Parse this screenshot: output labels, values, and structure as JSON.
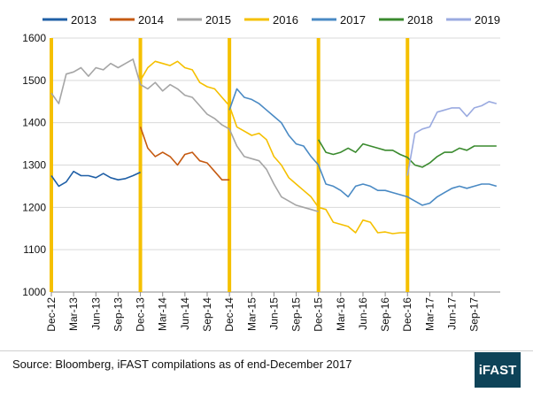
{
  "chart_data": {
    "type": "line",
    "title": "",
    "xlabel": "",
    "ylabel": "",
    "ylim": [
      1000,
      1600
    ],
    "yticks": [
      1000,
      1100,
      1200,
      1300,
      1400,
      1500,
      1600
    ],
    "x_ticks": [
      "Dec-12",
      "Mar-13",
      "Jun-13",
      "Sep-13",
      "Dec-13",
      "Mar-14",
      "Jun-14",
      "Sep-14",
      "Dec-14",
      "Mar-15",
      "Jun-15",
      "Sep-15",
      "Dec-15",
      "Mar-16",
      "Jun-16",
      "Sep-16",
      "Dec-16",
      "Mar-17",
      "Jun-17",
      "Sep-17"
    ],
    "grid": "horizontal",
    "legend": "top",
    "year_markers": [
      "Dec-12",
      "Dec-13",
      "Dec-14",
      "Dec-15",
      "Dec-16"
    ],
    "marker_color": "#f5c000",
    "series": [
      {
        "name": "2013",
        "color": "#1f5fa6",
        "points": [
          [
            "Dec-12",
            1275
          ],
          [
            "Jan-13",
            1250
          ],
          [
            "Feb-13",
            1260
          ],
          [
            "Mar-13",
            1285
          ],
          [
            "Apr-13",
            1275
          ],
          [
            "May-13",
            1275
          ],
          [
            "Jun-13",
            1270
          ],
          [
            "Jul-13",
            1280
          ],
          [
            "Aug-13",
            1270
          ],
          [
            "Sep-13",
            1265
          ],
          [
            "Oct-13",
            1268
          ],
          [
            "Nov-13",
            1275
          ],
          [
            "Dec-13",
            1283
          ]
        ]
      },
      {
        "name": "2014",
        "color": "#c55a11",
        "points": [
          [
            "Dec-13",
            1390
          ],
          [
            "Jan-14",
            1340
          ],
          [
            "Feb-14",
            1320
          ],
          [
            "Mar-14",
            1330
          ],
          [
            "Apr-14",
            1320
          ],
          [
            "May-14",
            1300
          ],
          [
            "Jun-14",
            1325
          ],
          [
            "Jul-14",
            1330
          ],
          [
            "Aug-14",
            1310
          ],
          [
            "Sep-14",
            1305
          ],
          [
            "Oct-14",
            1285
          ],
          [
            "Nov-14",
            1265
          ],
          [
            "Dec-14",
            1265
          ]
        ]
      },
      {
        "name": "2015",
        "color": "#a5a5a5",
        "points": [
          [
            "Dec-12",
            1470
          ],
          [
            "Jan-13",
            1445
          ],
          [
            "Feb-13",
            1515
          ],
          [
            "Mar-13",
            1520
          ],
          [
            "Apr-13",
            1530
          ],
          [
            "May-13",
            1510
          ],
          [
            "Jun-13",
            1530
          ],
          [
            "Jul-13",
            1525
          ],
          [
            "Aug-13",
            1540
          ],
          [
            "Sep-13",
            1530
          ],
          [
            "Oct-13",
            1540
          ],
          [
            "Nov-13",
            1550
          ],
          [
            "Dec-13",
            1490
          ],
          [
            "Jan-14",
            1480
          ],
          [
            "Feb-14",
            1495
          ],
          [
            "Mar-14",
            1475
          ],
          [
            "Apr-14",
            1490
          ],
          [
            "May-14",
            1480
          ],
          [
            "Jun-14",
            1465
          ],
          [
            "Jul-14",
            1460
          ],
          [
            "Aug-14",
            1440
          ],
          [
            "Sep-14",
            1420
          ],
          [
            "Oct-14",
            1410
          ],
          [
            "Nov-14",
            1395
          ],
          [
            "Dec-14",
            1385
          ],
          [
            "Jan-15",
            1345
          ],
          [
            "Feb-15",
            1320
          ],
          [
            "Mar-15",
            1315
          ],
          [
            "Apr-15",
            1310
          ],
          [
            "May-15",
            1290
          ],
          [
            "Jun-15",
            1255
          ],
          [
            "Jul-15",
            1225
          ],
          [
            "Aug-15",
            1215
          ],
          [
            "Sep-15",
            1205
          ],
          [
            "Oct-15",
            1200
          ],
          [
            "Nov-15",
            1195
          ],
          [
            "Dec-15",
            1190
          ]
        ]
      },
      {
        "name": "2016",
        "color": "#f5c000",
        "points": [
          [
            "Dec-13",
            1500
          ],
          [
            "Jan-14",
            1530
          ],
          [
            "Feb-14",
            1545
          ],
          [
            "Mar-14",
            1540
          ],
          [
            "Apr-14",
            1535
          ],
          [
            "May-14",
            1545
          ],
          [
            "Jun-14",
            1530
          ],
          [
            "Jul-14",
            1525
          ],
          [
            "Aug-14",
            1495
          ],
          [
            "Sep-14",
            1485
          ],
          [
            "Oct-14",
            1480
          ],
          [
            "Nov-14",
            1460
          ],
          [
            "Dec-14",
            1440
          ],
          [
            "Jan-15",
            1390
          ],
          [
            "Feb-15",
            1380
          ],
          [
            "Mar-15",
            1370
          ],
          [
            "Apr-15",
            1375
          ],
          [
            "May-15",
            1360
          ],
          [
            "Jun-15",
            1320
          ],
          [
            "Jul-15",
            1300
          ],
          [
            "Aug-15",
            1270
          ],
          [
            "Sep-15",
            1255
          ],
          [
            "Oct-15",
            1240
          ],
          [
            "Nov-15",
            1225
          ],
          [
            "Dec-15",
            1200
          ],
          [
            "Jan-16",
            1195
          ],
          [
            "Feb-16",
            1165
          ],
          [
            "Mar-16",
            1160
          ],
          [
            "Apr-16",
            1155
          ],
          [
            "May-16",
            1140
          ],
          [
            "Jun-16",
            1170
          ],
          [
            "Jul-16",
            1165
          ],
          [
            "Aug-16",
            1140
          ],
          [
            "Sep-16",
            1142
          ],
          [
            "Oct-16",
            1138
          ],
          [
            "Nov-16",
            1140
          ],
          [
            "Dec-16",
            1140
          ]
        ]
      },
      {
        "name": "2017",
        "color": "#4a8ac4",
        "points": [
          [
            "Dec-14",
            1430
          ],
          [
            "Jan-15",
            1480
          ],
          [
            "Feb-15",
            1460
          ],
          [
            "Mar-15",
            1455
          ],
          [
            "Apr-15",
            1445
          ],
          [
            "May-15",
            1430
          ],
          [
            "Jun-15",
            1415
          ],
          [
            "Jul-15",
            1400
          ],
          [
            "Aug-15",
            1370
          ],
          [
            "Sep-15",
            1350
          ],
          [
            "Oct-15",
            1345
          ],
          [
            "Nov-15",
            1320
          ],
          [
            "Dec-15",
            1300
          ],
          [
            "Jan-16",
            1255
          ],
          [
            "Feb-16",
            1250
          ],
          [
            "Mar-16",
            1240
          ],
          [
            "Apr-16",
            1225
          ],
          [
            "May-16",
            1250
          ],
          [
            "Jun-16",
            1255
          ],
          [
            "Jul-16",
            1250
          ],
          [
            "Aug-16",
            1240
          ],
          [
            "Sep-16",
            1240
          ],
          [
            "Oct-16",
            1235
          ],
          [
            "Nov-16",
            1230
          ],
          [
            "Dec-16",
            1225
          ],
          [
            "Jan-17",
            1215
          ],
          [
            "Feb-17",
            1205
          ],
          [
            "Mar-17",
            1210
          ],
          [
            "Apr-17",
            1225
          ],
          [
            "May-17",
            1235
          ],
          [
            "Jun-17",
            1245
          ],
          [
            "Jul-17",
            1250
          ],
          [
            "Aug-17",
            1245
          ],
          [
            "Sep-17",
            1250
          ],
          [
            "Oct-17",
            1255
          ],
          [
            "Nov-17",
            1255
          ],
          [
            "Dec-17",
            1250
          ]
        ]
      },
      {
        "name": "2018",
        "color": "#3a8a2e",
        "points": [
          [
            "Dec-15",
            1360
          ],
          [
            "Jan-16",
            1330
          ],
          [
            "Feb-16",
            1325
          ],
          [
            "Mar-16",
            1330
          ],
          [
            "Apr-16",
            1340
          ],
          [
            "May-16",
            1330
          ],
          [
            "Jun-16",
            1350
          ],
          [
            "Jul-16",
            1345
          ],
          [
            "Aug-16",
            1340
          ],
          [
            "Sep-16",
            1335
          ],
          [
            "Oct-16",
            1335
          ],
          [
            "Nov-16",
            1325
          ],
          [
            "Dec-16",
            1318
          ],
          [
            "Jan-17",
            1300
          ],
          [
            "Feb-17",
            1295
          ],
          [
            "Mar-17",
            1305
          ],
          [
            "Apr-17",
            1320
          ],
          [
            "May-17",
            1330
          ],
          [
            "Jun-17",
            1330
          ],
          [
            "Jul-17",
            1340
          ],
          [
            "Aug-17",
            1335
          ],
          [
            "Sep-17",
            1345
          ],
          [
            "Oct-17",
            1345
          ],
          [
            "Nov-17",
            1345
          ],
          [
            "Dec-17",
            1345
          ]
        ]
      },
      {
        "name": "2019",
        "color": "#9aaae0",
        "points": [
          [
            "Dec-16",
            1275
          ],
          [
            "Jan-17",
            1375
          ],
          [
            "Feb-17",
            1385
          ],
          [
            "Mar-17",
            1390
          ],
          [
            "Apr-17",
            1425
          ],
          [
            "May-17",
            1430
          ],
          [
            "Jun-17",
            1435
          ],
          [
            "Jul-17",
            1435
          ],
          [
            "Aug-17",
            1415
          ],
          [
            "Sep-17",
            1435
          ],
          [
            "Oct-17",
            1440
          ],
          [
            "Nov-17",
            1450
          ],
          [
            "Dec-17",
            1445
          ]
        ]
      }
    ]
  },
  "footer": {
    "source": "Source: Bloomberg, iFAST compilations as of end-December 2017",
    "brand": "iFAST"
  }
}
